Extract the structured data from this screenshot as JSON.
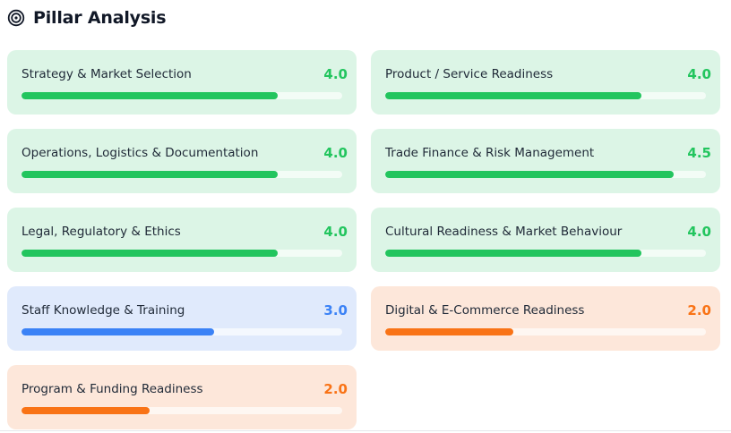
{
  "header": {
    "title": "Pillar Analysis",
    "icon": "target-icon"
  },
  "colors": {
    "green": "#22c55e",
    "blue": "#3b82f6",
    "orange": "#f97316"
  },
  "pillars": [
    {
      "label": "Strategy & Market Selection",
      "score": "4.0",
      "fraction": 0.8,
      "tone": "green"
    },
    {
      "label": "Product / Service Readiness",
      "score": "4.0",
      "fraction": 0.8,
      "tone": "green"
    },
    {
      "label": "Operations, Logistics & Documentation",
      "score": "4.0",
      "fraction": 0.8,
      "tone": "green"
    },
    {
      "label": "Trade Finance & Risk Management",
      "score": "4.5",
      "fraction": 0.9,
      "tone": "green"
    },
    {
      "label": "Legal, Regulatory & Ethics",
      "score": "4.0",
      "fraction": 0.8,
      "tone": "green"
    },
    {
      "label": "Cultural Readiness & Market Behaviour",
      "score": "4.0",
      "fraction": 0.8,
      "tone": "green"
    },
    {
      "label": "Staff Knowledge & Training",
      "score": "3.0",
      "fraction": 0.6,
      "tone": "blue"
    },
    {
      "label": "Digital & E-Commerce Readiness",
      "score": "2.0",
      "fraction": 0.4,
      "tone": "orange"
    },
    {
      "label": "Program & Funding Readiness",
      "score": "2.0",
      "fraction": 0.4,
      "tone": "orange"
    }
  ]
}
